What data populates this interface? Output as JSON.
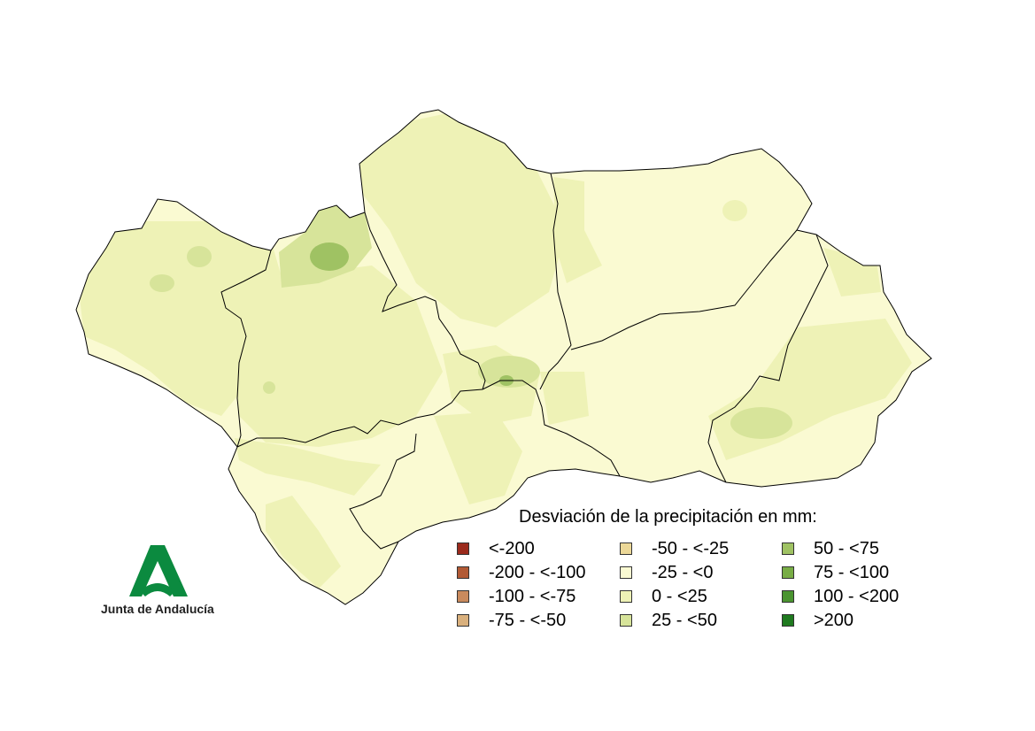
{
  "legend": {
    "title": "Desviación de la precipitación en mm:",
    "items": [
      {
        "label": "<-200",
        "color": "#9b2a1c"
      },
      {
        "label": "-200 - <-100",
        "color": "#b25a35"
      },
      {
        "label": "-100 - <-75",
        "color": "#c98a5d"
      },
      {
        "label": "-75 - <-50",
        "color": "#d9b07d"
      },
      {
        "label": "-50 - <-25",
        "color": "#ecd898"
      },
      {
        "label": "-25 - <0",
        "color": "#fafad2"
      },
      {
        "label": "0 - <25",
        "color": "#eef2b6"
      },
      {
        "label": "25 - <50",
        "color": "#d7e49a"
      },
      {
        "label": "50 - <75",
        "color": "#9fc263"
      },
      {
        "label": "75 - <100",
        "color": "#78ad45"
      },
      {
        "label": "100 - <200",
        "color": "#4a9430"
      },
      {
        "label": ">200",
        "color": "#1f7a1f"
      }
    ]
  },
  "logo": {
    "text": "Junta de Andalucía",
    "color": "#0b8a3f"
  },
  "colors": {
    "province_border": "#000000",
    "base_fill": "#fafad2"
  }
}
